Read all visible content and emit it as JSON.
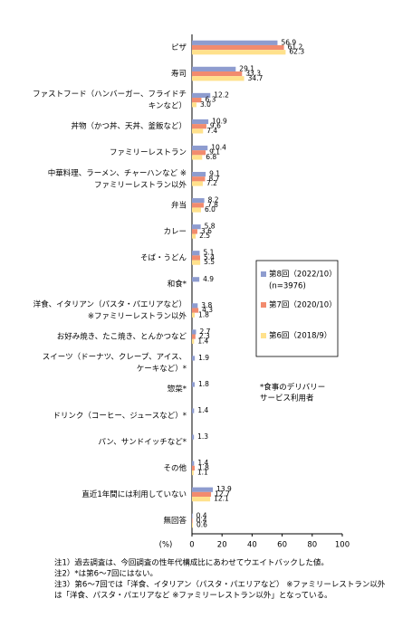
{
  "chart_data": {
    "type": "bar",
    "orientation": "horizontal",
    "categories": [
      [
        "ピザ"
      ],
      [
        "寿司"
      ],
      [
        "ファストフード（ハンバーガー、フライドチ",
        "キンなど）"
      ],
      [
        "丼物（かつ丼、天丼、釜飯など）"
      ],
      [
        "ファミリーレストラン"
      ],
      [
        "中華料理、ラーメン、チャーハンなど ※",
        "ファミリーレストラン以外"
      ],
      [
        "弁当"
      ],
      [
        "カレー"
      ],
      [
        "そば・うどん"
      ],
      [
        "和食*"
      ],
      [
        "洋食、イタリアン（パスタ・パエリアなど）",
        "※ファミリーレストラン以外"
      ],
      [
        "お好み焼き、たこ焼き、とんかつなど"
      ],
      [
        "スイーツ（ドーナツ、クレープ、アイス、",
        "ケーキなど）*"
      ],
      [
        "惣菜*"
      ],
      [
        "ドリンク（コーヒー、ジュースなど）*"
      ],
      [
        "パン、サンドイッチなど*"
      ],
      [
        "その他"
      ],
      [
        "直近1年間には利用していない"
      ],
      [
        "無回答"
      ]
    ],
    "series": [
      {
        "name": "第8回（2022/10）",
        "note": "(n=3976)",
        "color": "#8e9ccf",
        "values": [
          56.9,
          29.1,
          12.2,
          10.9,
          10.4,
          9.1,
          8.2,
          5.8,
          5.1,
          4.9,
          3.8,
          2.7,
          1.9,
          1.8,
          1.4,
          1.3,
          1.4,
          13.9,
          0.4
        ],
        "value_labels": [
          "56.9",
          "29.1",
          "12.2",
          "10.9",
          "10.4",
          "9.1",
          "8.2",
          "5.8",
          "5.1",
          "4.9",
          "3.8",
          "2.7",
          "1.9",
          "1.8",
          "1.4",
          "1.3",
          "1.4",
          "13.9",
          "0.4"
        ]
      },
      {
        "name": "第7回（2020/10）",
        "color": "#f28b6e",
        "values": [
          61.2,
          33.3,
          6.3,
          9.6,
          9.1,
          8.7,
          7.8,
          3.6,
          5.4,
          null,
          4.3,
          2.3,
          null,
          null,
          null,
          null,
          1.8,
          12.7,
          0.4
        ],
        "value_labels": [
          "61.2",
          "33.3",
          "6.3",
          "9.6",
          "9.1",
          "8.7",
          "7.8",
          "3.6",
          "5.4",
          null,
          "4.3",
          "2.3",
          null,
          null,
          null,
          null,
          "1.8",
          "12.7",
          "0.4"
        ]
      },
      {
        "name": "第6回（2018/9）",
        "color": "#ffe18c",
        "values": [
          62.3,
          34.7,
          3.0,
          7.4,
          6.8,
          7.2,
          6.0,
          2.5,
          5.5,
          null,
          1.8,
          1.4,
          null,
          null,
          null,
          null,
          1.1,
          12.1,
          0.6
        ],
        "value_labels": [
          "62.3",
          "34.7",
          "3.0",
          "7.4",
          "6.8",
          "7.2",
          "6.0",
          "2.5",
          "5.5",
          null,
          "1.8",
          "1.4",
          null,
          null,
          null,
          null,
          "1.1",
          "12.1",
          "0.6"
        ]
      }
    ],
    "xlim": [
      0,
      100
    ],
    "xticks": [
      0,
      20,
      40,
      60,
      80,
      100
    ],
    "x_label": "(%)",
    "legend_footnote": [
      "*食事のデリバリー",
      "サービス利用者"
    ],
    "notes": [
      [
        "注1）過去調査は、今回調査の性年代構成比にあわせてウエイトバックした値。"
      ],
      [
        "注2）*は第6～7回にはない。"
      ],
      [
        "注3）第6～7回では「洋食、イタリアン（パスタ・パエリアなど） ※ファミリーレストラン以外",
        "は「洋食、パスタ・パエリアなど ※ファミリーレストラン以外」となっている。"
      ]
    ]
  }
}
